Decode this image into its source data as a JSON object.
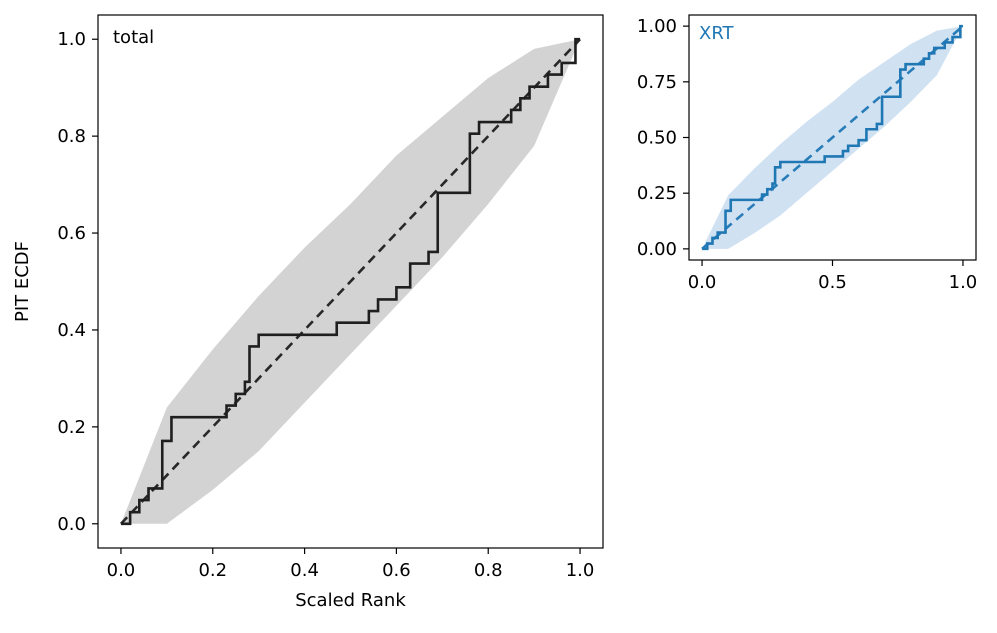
{
  "chart_data": [
    {
      "type": "line",
      "panel_label": "total",
      "xlabel": "Scaled Rank",
      "ylabel": "PIT ECDF",
      "xlim": [
        -0.05,
        1.05
      ],
      "ylim": [
        -0.05,
        1.05
      ],
      "xticks": [
        0.0,
        0.2,
        0.4,
        0.6,
        0.8,
        1.0
      ],
      "xtick_labels": [
        "0.0",
        "0.2",
        "0.4",
        "0.6",
        "0.8",
        "1.0"
      ],
      "yticks": [
        0.0,
        0.2,
        0.4,
        0.6,
        0.8,
        1.0
      ],
      "ytick_labels": [
        "0.0",
        "0.2",
        "0.4",
        "0.6",
        "0.8",
        "1.0"
      ],
      "grid": false,
      "colors": {
        "line": "#1f1f1f",
        "band": "#d3d3d3"
      },
      "series": [
        {
          "kind": "step",
          "x": [
            0.0,
            0.02,
            0.04,
            0.06,
            0.09,
            0.11,
            0.23,
            0.25,
            0.27,
            0.28,
            0.3,
            0.47,
            0.52,
            0.54,
            0.56,
            0.58,
            0.6,
            0.63,
            0.67,
            0.69,
            0.74,
            0.76,
            0.78,
            0.82,
            0.85,
            0.87,
            0.89,
            0.91,
            0.93,
            0.96,
            0.99,
            1.0
          ],
          "y": [
            0.0,
            0.024,
            0.049,
            0.073,
            0.171,
            0.22,
            0.244,
            0.268,
            0.293,
            0.366,
            0.39,
            0.415,
            0.415,
            0.439,
            0.463,
            0.463,
            0.488,
            0.537,
            0.561,
            0.683,
            0.683,
            0.805,
            0.829,
            0.829,
            0.854,
            0.878,
            0.902,
            0.902,
            0.927,
            0.951,
            1.0,
            1.0
          ]
        },
        {
          "kind": "diagonal",
          "x": [
            0.0,
            1.0
          ],
          "y": [
            0.0,
            1.0
          ]
        }
      ],
      "band": {
        "x": [
          0.0,
          0.1,
          0.2,
          0.3,
          0.4,
          0.5,
          0.6,
          0.7,
          0.8,
          0.9,
          1.0
        ],
        "lower": [
          0.0,
          0.0,
          0.07,
          0.15,
          0.25,
          0.35,
          0.45,
          0.55,
          0.66,
          0.78,
          1.0
        ],
        "upper": [
          0.0,
          0.24,
          0.36,
          0.47,
          0.57,
          0.66,
          0.76,
          0.84,
          0.92,
          0.98,
          1.0
        ]
      }
    },
    {
      "type": "line",
      "panel_label": "XRT",
      "xlabel": "",
      "ylabel": "",
      "xlim": [
        -0.05,
        1.05
      ],
      "ylim": [
        -0.05,
        1.05
      ],
      "xticks": [
        0.0,
        0.5,
        1.0
      ],
      "xtick_labels": [
        "0.0",
        "0.5",
        "1.0"
      ],
      "yticks": [
        0.0,
        0.25,
        0.5,
        0.75,
        1.0
      ],
      "ytick_labels": [
        "0.00",
        "0.25",
        "0.50",
        "0.75",
        "1.00"
      ],
      "grid": false,
      "colors": {
        "line": "#1f77b4",
        "band": "#d0e1f2",
        "label": "#1f77b4"
      },
      "series": [
        {
          "kind": "step",
          "x": [
            0.0,
            0.02,
            0.04,
            0.06,
            0.09,
            0.11,
            0.23,
            0.25,
            0.27,
            0.28,
            0.3,
            0.47,
            0.52,
            0.54,
            0.56,
            0.58,
            0.6,
            0.63,
            0.67,
            0.69,
            0.74,
            0.76,
            0.78,
            0.82,
            0.85,
            0.87,
            0.89,
            0.91,
            0.93,
            0.96,
            0.99,
            1.0
          ],
          "y": [
            0.0,
            0.024,
            0.049,
            0.073,
            0.171,
            0.22,
            0.244,
            0.268,
            0.293,
            0.366,
            0.39,
            0.415,
            0.415,
            0.439,
            0.463,
            0.463,
            0.488,
            0.537,
            0.561,
            0.683,
            0.683,
            0.805,
            0.829,
            0.829,
            0.854,
            0.878,
            0.902,
            0.902,
            0.927,
            0.951,
            1.0,
            1.0
          ]
        },
        {
          "kind": "diagonal",
          "x": [
            0.0,
            1.0
          ],
          "y": [
            0.0,
            1.0
          ]
        }
      ],
      "band": {
        "x": [
          0.0,
          0.1,
          0.2,
          0.3,
          0.4,
          0.5,
          0.6,
          0.7,
          0.8,
          0.9,
          1.0
        ],
        "lower": [
          0.0,
          0.0,
          0.07,
          0.15,
          0.25,
          0.35,
          0.45,
          0.55,
          0.66,
          0.78,
          1.0
        ],
        "upper": [
          0.0,
          0.24,
          0.36,
          0.47,
          0.57,
          0.66,
          0.76,
          0.84,
          0.92,
          0.98,
          1.0
        ]
      }
    }
  ]
}
